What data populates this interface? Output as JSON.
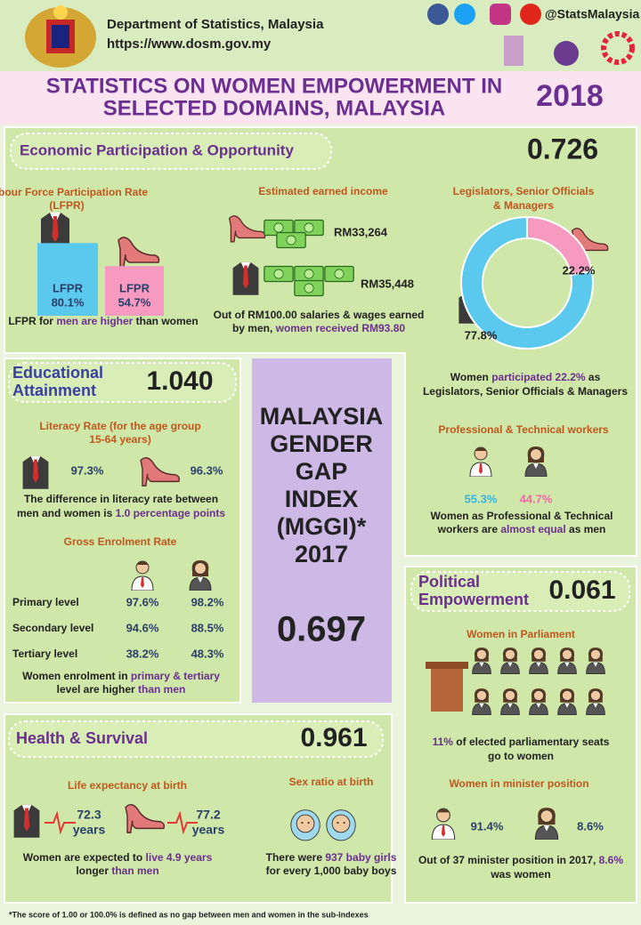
{
  "header": {
    "org": "Department of Statistics, Malaysia",
    "url": "https://www.dosm.gov.my",
    "social": "@StatsMalaysia"
  },
  "title": {
    "lines": [
      "STATISTICS ON WOMEN EMPOWERMENT IN",
      "SELECTED DOMAINS, MALAYSIA"
    ],
    "year": "2018"
  },
  "economic": {
    "heading": "Economic Participation & Opportunity",
    "score": "0.726",
    "lfpr": {
      "title": [
        "Labour Force Participation Rate",
        "(LFPR)"
      ],
      "men": {
        "label": "LFPR",
        "value": 80.1,
        "value_label": "80.1%"
      },
      "women": {
        "label": "LFPR",
        "value": 54.7,
        "value_label": "54.7%"
      },
      "note": [
        "LFPR for ",
        "men are higher",
        " than women"
      ]
    },
    "income": {
      "title": "Estimated earned income",
      "women": "RM33,264",
      "men": "RM35,448",
      "note": [
        [
          "Out of RM100.00  salaries & wages earned"
        ],
        [
          "by men, ",
          "women received RM93.80"
        ]
      ]
    },
    "managers": {
      "title": [
        "Legislators, Senior Officials",
        "& Managers"
      ],
      "women": {
        "value": 22.2,
        "value_label": "22.2%"
      },
      "men": {
        "value": 77.8,
        "value_label": "77.8%"
      },
      "note": [
        [
          "Women ",
          "participated 22.2%",
          " as"
        ],
        [
          "Legislators, Senior Officials & Managers"
        ]
      ]
    },
    "professional": {
      "title": "Professional & Technical workers",
      "men": "55.3%",
      "women": "44.7%",
      "note": [
        [
          "Women as Professional & Technical"
        ],
        [
          "workers are ",
          "almost equal",
          " as men"
        ]
      ]
    }
  },
  "education": {
    "heading": [
      "Educational",
      "Attainment"
    ],
    "score": "1.040",
    "literacy": {
      "title": [
        "Literacy Rate (for the age group",
        "15-64 years)"
      ],
      "men": "97.3%",
      "women": "96.3%",
      "note": [
        [
          "The difference in literacy rate between"
        ],
        [
          "men and women is ",
          "1.0 percentage points"
        ]
      ]
    },
    "enrolment": {
      "title": "Gross Enrolment Rate",
      "rows": [
        [
          "Primary level",
          "97.6%",
          "98.2%"
        ],
        [
          "Secondary level",
          "94.6%",
          "88.5%"
        ],
        [
          "Tertiary level",
          "38.2%",
          "48.3%"
        ]
      ],
      "note": [
        [
          "Women enrolment in ",
          "primary & tertiary"
        ],
        [
          "level are higher",
          " than men"
        ]
      ]
    }
  },
  "mggi": {
    "lines": [
      "MALAYSIA",
      "GENDER",
      "GAP",
      "INDEX",
      "(MGGI)*",
      "2017"
    ],
    "score": "0.697"
  },
  "health": {
    "heading": "Health & Survival",
    "score": "0.961",
    "life": {
      "title": "Life expectancy at birth",
      "men": [
        "72.3",
        "years"
      ],
      "women": [
        "77.2",
        "years"
      ],
      "note": [
        [
          "Women are expected to ",
          "live 4.9 years"
        ],
        [
          "longer",
          " than men"
        ]
      ]
    },
    "sex_ratio": {
      "title": "Sex ratio at birth",
      "note": [
        [
          "There were ",
          "937 baby girls"
        ],
        [
          "for every 1,000 baby boys"
        ]
      ]
    }
  },
  "political": {
    "heading": [
      "Political",
      "Empowerment"
    ],
    "score": "0.061",
    "parliament": {
      "title": "Women in Parliament",
      "note": [
        [
          "11%",
          " of elected parliamentary seats"
        ],
        [
          "go to women"
        ]
      ]
    },
    "minister": {
      "title": "Women in minister position",
      "men": "91.4%",
      "women": "8.6%",
      "note": [
        [
          "Out of 37 minister position in 2017, ",
          "8.6%"
        ],
        [
          "was women"
        ]
      ]
    }
  },
  "footnote": "*The score of 1.00 or 100.0% is defined as no gap between men and women in the sub-indexes"
}
